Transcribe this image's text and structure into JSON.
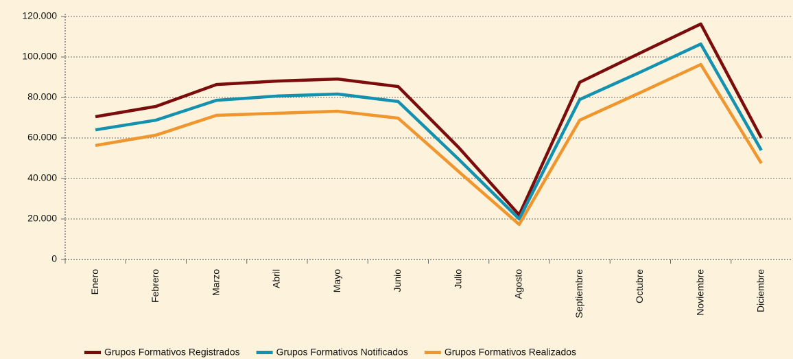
{
  "chart_data": {
    "type": "line",
    "categories": [
      "Enero",
      "Febrero",
      "Marzo",
      "Abril",
      "Mayo",
      "Junio",
      "Julio",
      "Agosto",
      "Septiembre",
      "Octubre",
      "Noviembre",
      "Diciembre"
    ],
    "series": [
      {
        "name": "Grupos Formativos Registrados",
        "color": "#7b0c0c",
        "values": [
          70500,
          75600,
          86400,
          88100,
          89100,
          85400,
          55300,
          22000,
          87500,
          102000,
          116300,
          60000
        ]
      },
      {
        "name": "Grupos Formativos Notificados",
        "color": "#1591b0",
        "values": [
          64000,
          68800,
          78600,
          80700,
          81700,
          78000,
          49500,
          20000,
          79000,
          92500,
          106400,
          53900
        ]
      },
      {
        "name": "Grupos Formativos Realizados",
        "color": "#f0962e",
        "values": [
          56300,
          61400,
          71200,
          72200,
          73200,
          69800,
          43400,
          17300,
          68800,
          82400,
          96300,
          47500
        ]
      }
    ],
    "ylim": [
      0,
      120000
    ],
    "yticks": [
      0,
      {
        "value": 20000,
        "label": "20.000"
      },
      {
        "value": 40000,
        "label": "40.000"
      },
      {
        "value": 60000,
        "label": "60.000"
      },
      {
        "value": 80000,
        "label": "80.000"
      },
      {
        "value": 100000,
        "label": "100.000"
      },
      {
        "value": 120000,
        "label": "120.000"
      }
    ],
    "grid": true
  }
}
